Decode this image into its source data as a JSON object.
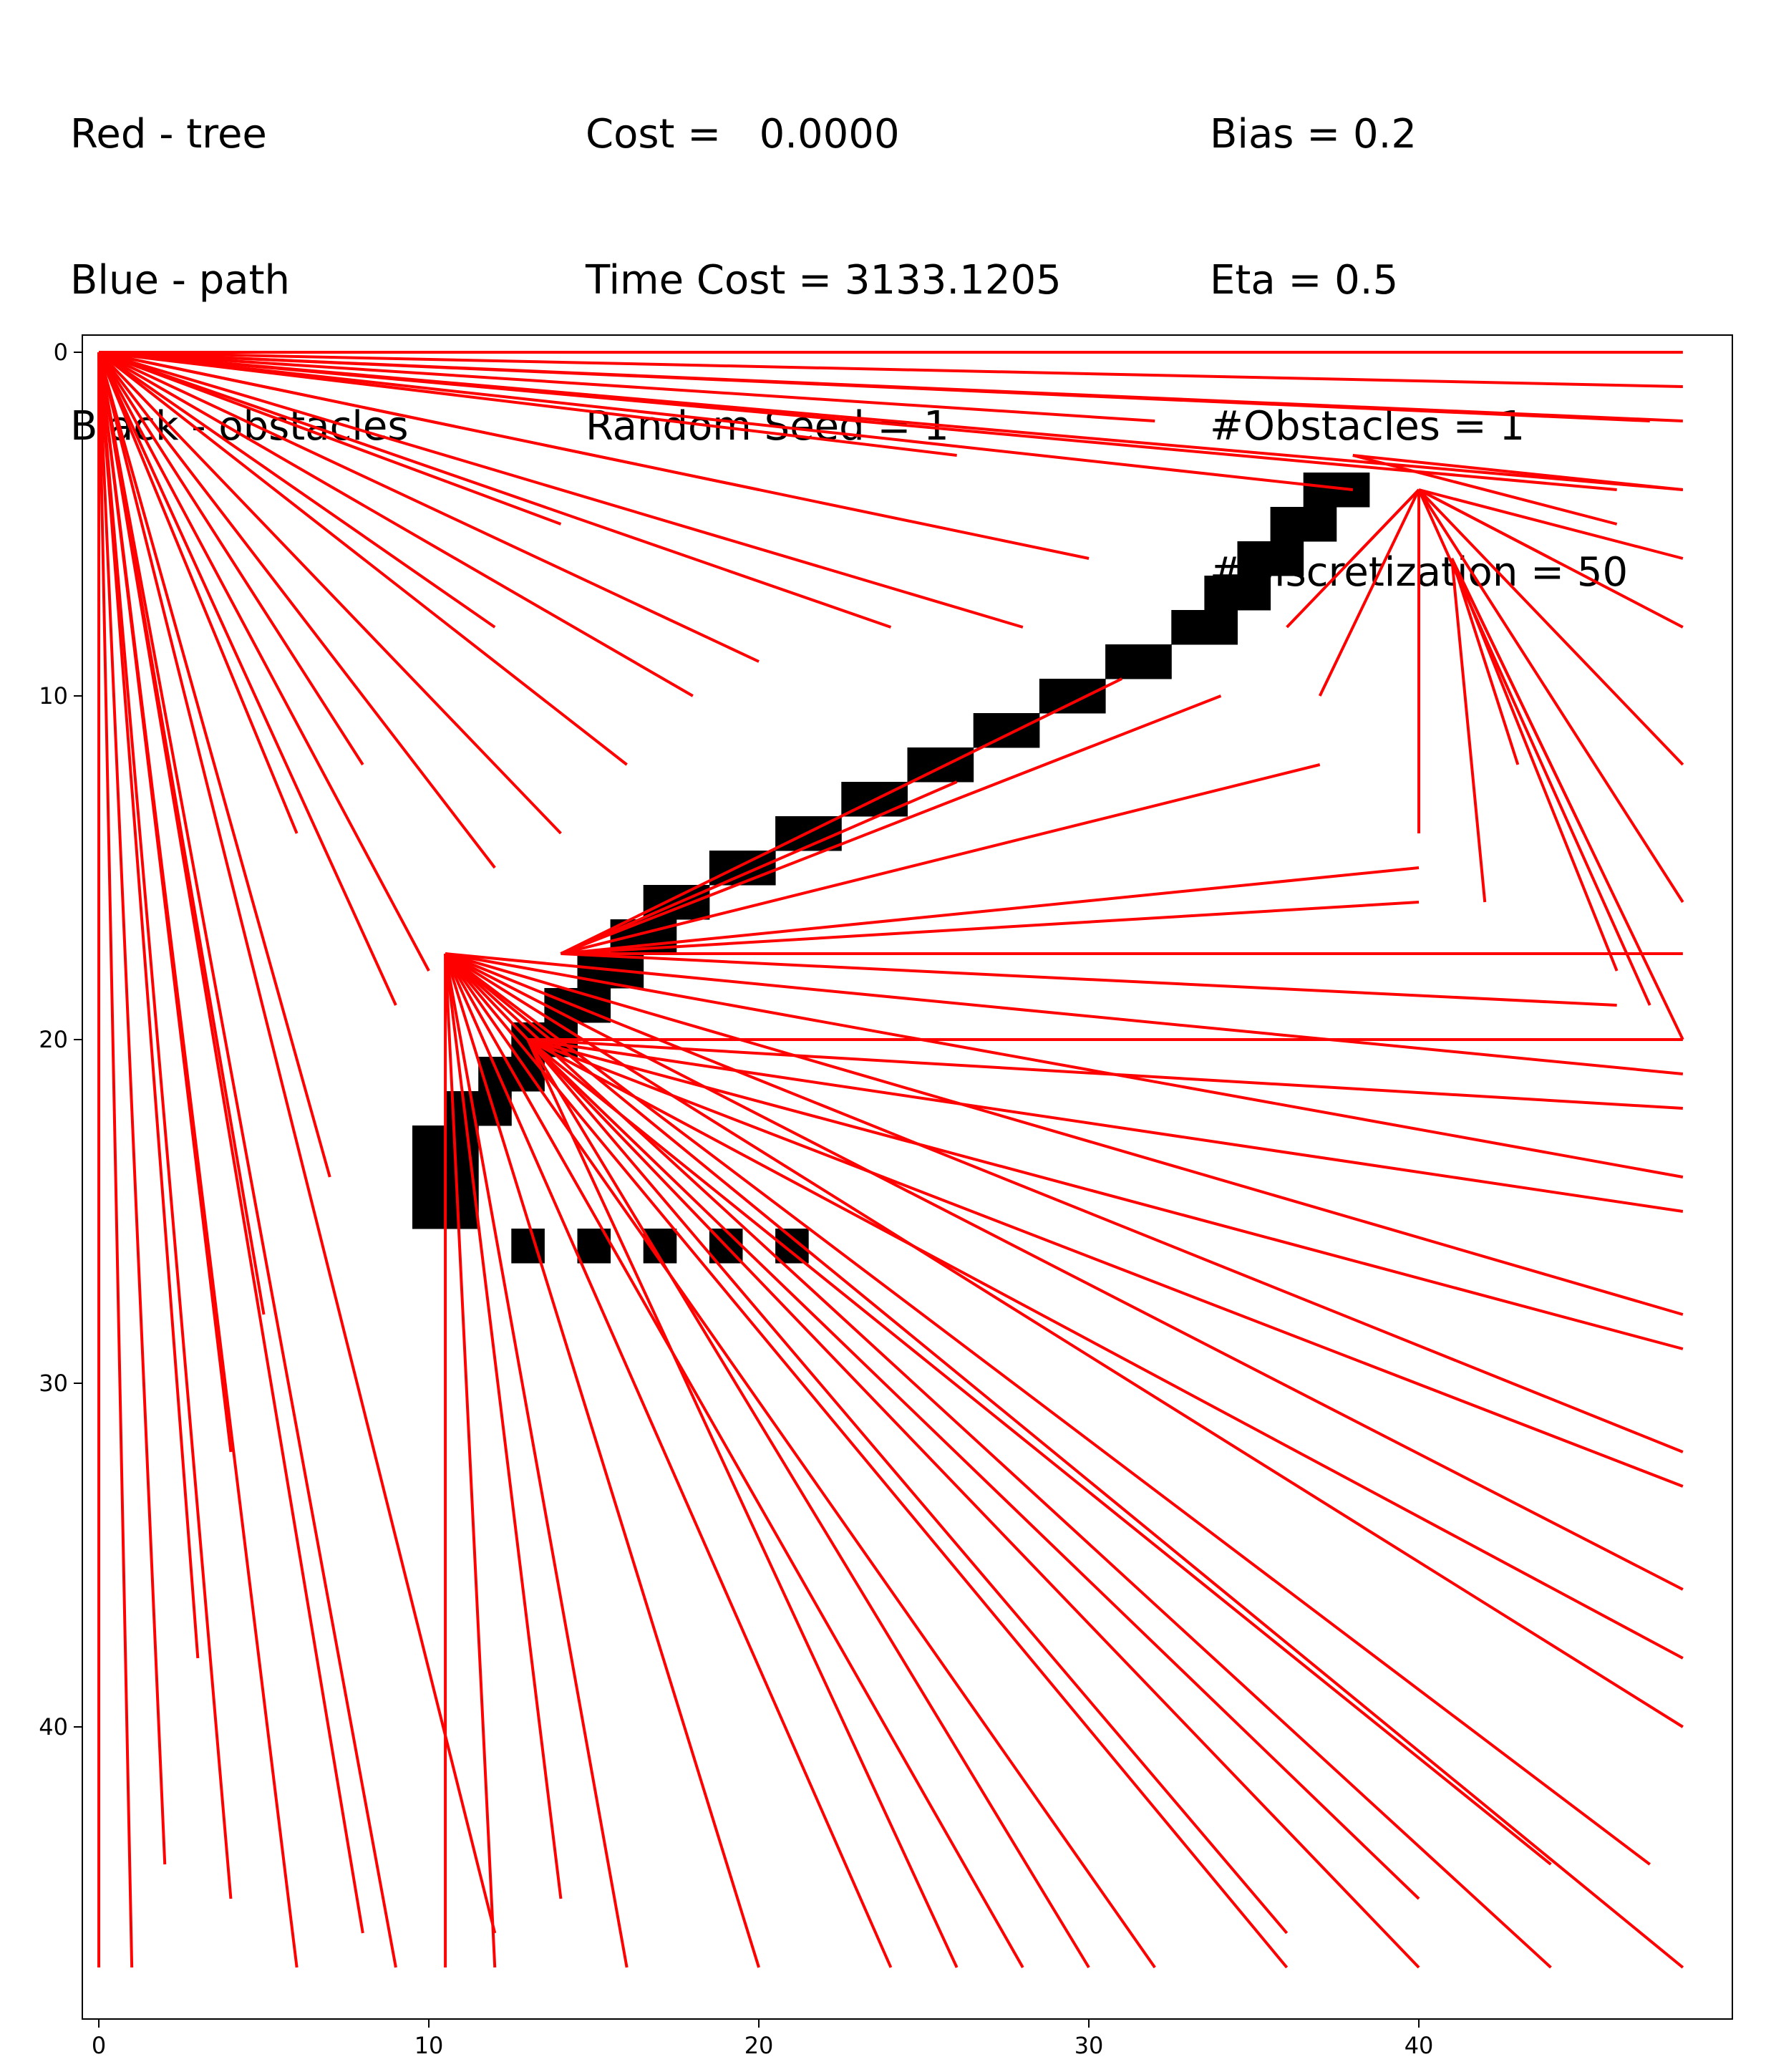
{
  "header": {
    "legend_lines": [
      "Red - tree",
      "Blue - path",
      "Black - obstacles"
    ],
    "metrics_lines": [
      "Cost =   0.0000",
      "Time Cost = 3133.1205",
      "Random Seed = 1"
    ],
    "params_lines": [
      "Bias = 0.2",
      "Eta = 0.5",
      "#Obstacles = 1",
      "#Discretization = 50"
    ]
  },
  "chart_data": {
    "type": "line",
    "title": "",
    "xlabel": "",
    "ylabel": "",
    "xlim": [
      -0.5,
      49.5
    ],
    "ylim": [
      48.5,
      -0.5
    ],
    "y_inverted": true,
    "xticks": [
      0,
      10,
      20,
      30,
      40
    ],
    "yticks": [
      0,
      10,
      20,
      30,
      40
    ],
    "colors": {
      "tree": "#ff0000",
      "path": "#0000ff",
      "obstacles": "#000000"
    },
    "obstacle_cells": [
      [
        37,
        4
      ],
      [
        38,
        4
      ],
      [
        36,
        5
      ],
      [
        37,
        5
      ],
      [
        35,
        6
      ],
      [
        36,
        6
      ],
      [
        34,
        7
      ],
      [
        35,
        7
      ],
      [
        33,
        8
      ],
      [
        34,
        8
      ],
      [
        31,
        9
      ],
      [
        32,
        9
      ],
      [
        29,
        10
      ],
      [
        30,
        10
      ],
      [
        27,
        11
      ],
      [
        28,
        11
      ],
      [
        25,
        12
      ],
      [
        26,
        12
      ],
      [
        23,
        13
      ],
      [
        24,
        13
      ],
      [
        21,
        14
      ],
      [
        22,
        14
      ],
      [
        19,
        15
      ],
      [
        20,
        15
      ],
      [
        17,
        16
      ],
      [
        18,
        16
      ],
      [
        16,
        17
      ],
      [
        17,
        17
      ],
      [
        15,
        18
      ],
      [
        16,
        18
      ],
      [
        14,
        19
      ],
      [
        15,
        19
      ],
      [
        13,
        20
      ],
      [
        14,
        20
      ],
      [
        12,
        21
      ],
      [
        13,
        21
      ],
      [
        11,
        22
      ],
      [
        12,
        22
      ],
      [
        10,
        23
      ],
      [
        11,
        23
      ],
      [
        10,
        24
      ],
      [
        11,
        24
      ],
      [
        10,
        25
      ],
      [
        11,
        25
      ],
      [
        13,
        26
      ],
      [
        15,
        26
      ],
      [
        17,
        26
      ],
      [
        19,
        26
      ],
      [
        21,
        26
      ]
    ],
    "tree_edges": [
      [
        0,
        0,
        48,
        0
      ],
      [
        0,
        0,
        48,
        1
      ],
      [
        0,
        0,
        47,
        2
      ],
      [
        0,
        0,
        48,
        2
      ],
      [
        0,
        0,
        46,
        4
      ],
      [
        0,
        0,
        48,
        4
      ],
      [
        0,
        0,
        38,
        4
      ],
      [
        0,
        0,
        30,
        6
      ],
      [
        0,
        0,
        28,
        8
      ],
      [
        0,
        0,
        24,
        8
      ],
      [
        0,
        0,
        20,
        9
      ],
      [
        0,
        0,
        18,
        10
      ],
      [
        0,
        0,
        16,
        12
      ],
      [
        0,
        0,
        14,
        14
      ],
      [
        0,
        0,
        12,
        15
      ],
      [
        0,
        0,
        10,
        18
      ],
      [
        0,
        0,
        9,
        19
      ],
      [
        0,
        0,
        7,
        24
      ],
      [
        0,
        0,
        5,
        28
      ],
      [
        0,
        0,
        4,
        32
      ],
      [
        0,
        0,
        3,
        38
      ],
      [
        0,
        0,
        2,
        44
      ],
      [
        0,
        0,
        1,
        47
      ],
      [
        0,
        0,
        0,
        47
      ],
      [
        0,
        0,
        6,
        14
      ],
      [
        0,
        0,
        8,
        12
      ],
      [
        0,
        0,
        12,
        8
      ],
      [
        0,
        0,
        14,
        5
      ],
      [
        0,
        0,
        20,
        4
      ],
      [
        0,
        0,
        26,
        3
      ],
      [
        0,
        0,
        32,
        2
      ],
      [
        38,
        3,
        48,
        4
      ],
      [
        38,
        3,
        46,
        5
      ],
      [
        40,
        4,
        48,
        6
      ],
      [
        40,
        4,
        48,
        8
      ],
      [
        40,
        4,
        48,
        12
      ],
      [
        40,
        4,
        48,
        16
      ],
      [
        40,
        4,
        47,
        19
      ],
      [
        40,
        4,
        40,
        14
      ],
      [
        40,
        4,
        37,
        10
      ],
      [
        40,
        4,
        36,
        8
      ],
      [
        40,
        4,
        38,
        6
      ],
      [
        40,
        4,
        44,
        6
      ],
      [
        41,
        6,
        48,
        20
      ],
      [
        41,
        6,
        46,
        18
      ],
      [
        41,
        6,
        45,
        14
      ],
      [
        41,
        6,
        42,
        16
      ],
      [
        41,
        6,
        43,
        12
      ],
      [
        10.5,
        17.5,
        48,
        21
      ],
      [
        10.5,
        17.5,
        48,
        24
      ],
      [
        10.5,
        17.5,
        48,
        28
      ],
      [
        10.5,
        17.5,
        48,
        32
      ],
      [
        10.5,
        17.5,
        48,
        36
      ],
      [
        10.5,
        17.5,
        48,
        40
      ],
      [
        10.5,
        17.5,
        47,
        44
      ],
      [
        10.5,
        17.5,
        48,
        47
      ],
      [
        10.5,
        17.5,
        44,
        47
      ],
      [
        10.5,
        17.5,
        40,
        47
      ],
      [
        10.5,
        17.5,
        36,
        47
      ],
      [
        10.5,
        17.5,
        32,
        47
      ],
      [
        10.5,
        17.5,
        28,
        47
      ],
      [
        10.5,
        17.5,
        24,
        47
      ],
      [
        10.5,
        17.5,
        20,
        47
      ],
      [
        10.5,
        17.5,
        16,
        47
      ],
      [
        10.5,
        17.5,
        14,
        45
      ],
      [
        10.5,
        17.5,
        12,
        47
      ],
      [
        10.5,
        17.5,
        10.5,
        47
      ],
      [
        14,
        17.5,
        48,
        17.5
      ],
      [
        14,
        17.5,
        46,
        19
      ],
      [
        14,
        17.5,
        40,
        15
      ],
      [
        14,
        17.5,
        37,
        12
      ],
      [
        14,
        17.5,
        34,
        10
      ],
      [
        14,
        17.5,
        31,
        9.5
      ],
      [
        14,
        17.5,
        26,
        12.5
      ],
      [
        14,
        17.5,
        44,
        17.5
      ],
      [
        14,
        17.5,
        40,
        16
      ],
      [
        13,
        20,
        48,
        20
      ],
      [
        13,
        20,
        48,
        22
      ],
      [
        13,
        20,
        48,
        25
      ],
      [
        13,
        20,
        48,
        29
      ],
      [
        13,
        20,
        48,
        33
      ],
      [
        13,
        20,
        48,
        38
      ],
      [
        13,
        20,
        44,
        44
      ],
      [
        13,
        20,
        40,
        45
      ],
      [
        13,
        20,
        36,
        46
      ],
      [
        13,
        20,
        30,
        47
      ],
      [
        13,
        20,
        26,
        47
      ],
      [
        0,
        0,
        4,
        45
      ],
      [
        0,
        0,
        6,
        47
      ],
      [
        0,
        0,
        8,
        46
      ],
      [
        0,
        0,
        9,
        47
      ],
      [
        0,
        0,
        12,
        46
      ]
    ]
  }
}
